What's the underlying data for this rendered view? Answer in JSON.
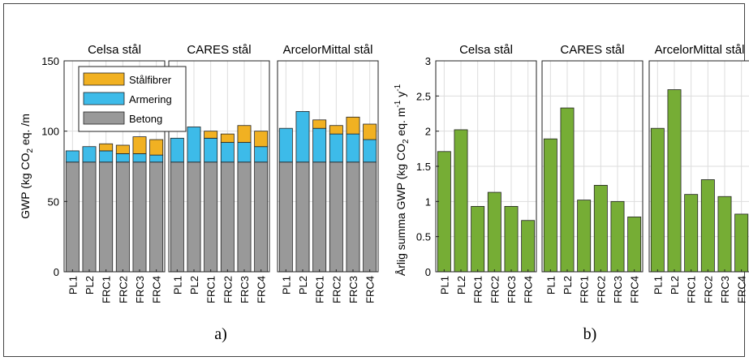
{
  "colors": {
    "betong": "#999999",
    "armering": "#3dbbe9",
    "stalfibrer": "#f1b122",
    "green": "#76ad35",
    "grid": "#dddddd"
  },
  "chart_data": [
    {
      "type": "bar",
      "stacked": true,
      "panel_label": "a)",
      "ylabel": "GWP (kg CO<sub>2</sub> eq. /m",
      "ylim": [
        0,
        150
      ],
      "yticks": [
        0,
        50,
        100,
        150
      ],
      "grid": true,
      "legend": {
        "placement": "top-left",
        "entries": [
          "Stålfibrer",
          "Armering",
          "Betong"
        ]
      },
      "categories": [
        "PL1",
        "PL2",
        "FRC1",
        "FRC2",
        "FRC3",
        "FRC4"
      ],
      "groups": [
        {
          "title": "Celsa stål",
          "series": [
            {
              "name": "Betong",
              "values": [
                78,
                78,
                78,
                78,
                78,
                78
              ]
            },
            {
              "name": "Armering",
              "values": [
                8,
                11,
                8,
                6,
                6,
                5
              ]
            },
            {
              "name": "Stålfibrer",
              "values": [
                0,
                0,
                5,
                6,
                12,
                11
              ]
            }
          ]
        },
        {
          "title": "CARES stål",
          "series": [
            {
              "name": "Betong",
              "values": [
                78,
                78,
                78,
                78,
                78,
                78
              ]
            },
            {
              "name": "Armering",
              "values": [
                17,
                25,
                17,
                14,
                14,
                11
              ]
            },
            {
              "name": "Stålfibrer",
              "values": [
                0,
                0,
                5,
                6,
                12,
                11
              ]
            }
          ]
        },
        {
          "title": "ArcelorMittal stål",
          "series": [
            {
              "name": "Betong",
              "values": [
                78,
                78,
                78,
                78,
                78,
                78
              ]
            },
            {
              "name": "Armering",
              "values": [
                24,
                36,
                24,
                20,
                20,
                16
              ]
            },
            {
              "name": "Stålfibrer",
              "values": [
                0,
                0,
                6,
                6,
                12,
                11
              ]
            }
          ]
        }
      ]
    },
    {
      "type": "bar",
      "panel_label": "b)",
      "ylabel": "Årlig summa GWP (kg CO<sub>2</sub> eq. m<sup>-1</sup> y<sup>-1</sup>",
      "ylim": [
        0,
        3
      ],
      "yticks": [
        "0",
        "0.5",
        "1",
        "1.5",
        "2",
        "2.5",
        "3"
      ],
      "grid": true,
      "categories": [
        "PL1",
        "PL2",
        "FRC1",
        "FRC2",
        "FRC3",
        "FRC4"
      ],
      "groups": [
        {
          "title": "Celsa stål",
          "values": [
            1.71,
            2.02,
            0.93,
            1.13,
            0.93,
            0.73
          ]
        },
        {
          "title": "CARES stål",
          "values": [
            1.89,
            2.33,
            1.02,
            1.23,
            1.0,
            0.78
          ]
        },
        {
          "title": "ArcelorMittal stål",
          "values": [
            2.04,
            2.59,
            1.1,
            1.31,
            1.07,
            0.82
          ]
        }
      ]
    }
  ]
}
